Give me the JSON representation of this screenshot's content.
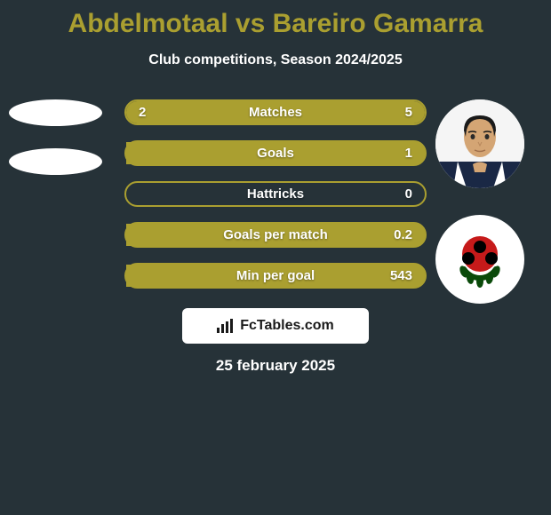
{
  "title": {
    "name1": "Abdelmotaal",
    "vs": "vs",
    "name2": "Bareiro Gamarra",
    "color": "#aa9f30"
  },
  "subtitle": "Club competitions, Season 2024/2025",
  "background_color": "#263238",
  "bars": [
    {
      "label": "Matches",
      "left_value": "2",
      "right_value": "5",
      "left_fill_pct": 29,
      "right_fill_pct": 71,
      "fill_color": "#aa9f30",
      "border_color": "#aa9f30",
      "bg_color": "transparent"
    },
    {
      "label": "Goals",
      "left_value": "",
      "right_value": "1",
      "left_fill_pct": 0,
      "right_fill_pct": 100,
      "fill_color": "#aa9f30",
      "border_color": "#aa9f30",
      "bg_color": "#aa9f30"
    },
    {
      "label": "Hattricks",
      "left_value": "",
      "right_value": "0",
      "left_fill_pct": 0,
      "right_fill_pct": 0,
      "fill_color": "#aa9f30",
      "border_color": "#aa9f30",
      "bg_color": "transparent"
    },
    {
      "label": "Goals per match",
      "left_value": "",
      "right_value": "0.2",
      "left_fill_pct": 0,
      "right_fill_pct": 100,
      "fill_color": "#aa9f30",
      "border_color": "#aa9f30",
      "bg_color": "#aa9f30"
    },
    {
      "label": "Min per goal",
      "left_value": "",
      "right_value": "543",
      "left_fill_pct": 0,
      "right_fill_pct": 100,
      "fill_color": "#aa9f30",
      "border_color": "#aa9f30",
      "bg_color": "#aa9f30"
    }
  ],
  "footer": {
    "logo_text": "FcTables.com",
    "logo_bg": "#ffffff",
    "logo_text_color": "#1a1a1a",
    "date": "25 february 2025"
  },
  "avatars": {
    "left_bg": "#ffffff",
    "right_bg": "#ffffff"
  },
  "team_logo": {
    "bg": "#ffffff",
    "primary": "#c61a1a",
    "secondary": "#0a4a0a",
    "black": "#000000"
  }
}
